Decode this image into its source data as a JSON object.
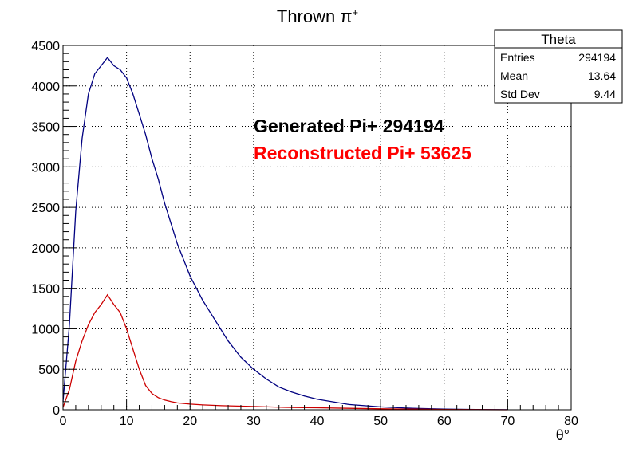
{
  "chart_data": {
    "type": "line",
    "title_main": "Thrown π",
    "title_sup": "+",
    "xlabel": "θ°",
    "ylabel": "",
    "xlim": [
      0,
      80
    ],
    "ylim": [
      0,
      4500
    ],
    "x_ticks": [
      "0",
      "10",
      "20",
      "30",
      "40",
      "50",
      "60",
      "70",
      "80"
    ],
    "y_ticks": [
      "0",
      "500",
      "1000",
      "1500",
      "2000",
      "2500",
      "3000",
      "3500",
      "4000",
      "4500"
    ],
    "grid": true,
    "annotations": [
      {
        "text": "Generated Pi+ 294194",
        "color": "#000000"
      },
      {
        "text": "Reconstructed Pi+ 53625",
        "color": "#ff0000"
      }
    ],
    "stats_box": {
      "title": "Theta",
      "rows": [
        {
          "label": "Entries",
          "value": "294194"
        },
        {
          "label": "Mean",
          "value": "13.64"
        },
        {
          "label": "Std Dev",
          "value": "9.44"
        }
      ]
    },
    "series": [
      {
        "color": "#000080",
        "x": [
          0,
          1,
          2,
          3,
          4,
          5,
          6,
          7,
          8,
          9,
          10,
          11,
          12,
          13,
          14,
          15,
          16,
          17,
          18,
          19,
          20,
          22,
          24,
          26,
          28,
          30,
          32,
          34,
          36,
          38,
          40,
          45,
          50,
          55,
          60,
          65,
          70
        ],
        "y": [
          100,
          1050,
          2450,
          3350,
          3900,
          4150,
          4250,
          4350,
          4250,
          4200,
          4100,
          3900,
          3650,
          3400,
          3100,
          2850,
          2550,
          2300,
          2050,
          1850,
          1650,
          1350,
          1100,
          850,
          650,
          500,
          380,
          280,
          220,
          170,
          130,
          65,
          35,
          18,
          8,
          3,
          1
        ]
      },
      {
        "color": "#cc0000",
        "x": [
          0,
          1,
          2,
          3,
          4,
          5,
          6,
          7,
          8,
          9,
          10,
          11,
          12,
          13,
          14,
          15,
          16,
          17,
          18,
          20,
          22,
          25,
          30,
          35,
          40,
          45,
          50,
          55,
          60,
          65,
          70
        ],
        "y": [
          30,
          250,
          600,
          850,
          1050,
          1200,
          1300,
          1420,
          1300,
          1200,
          1000,
          750,
          500,
          300,
          200,
          150,
          120,
          100,
          85,
          70,
          60,
          50,
          40,
          30,
          25,
          18,
          12,
          8,
          4,
          2,
          0
        ]
      }
    ]
  }
}
